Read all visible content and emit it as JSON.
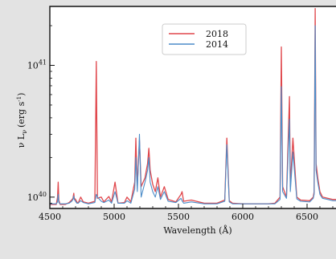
{
  "chart_data": {
    "type": "line",
    "title": "",
    "xlabel": "Wavelength (Å)",
    "ylabel": "ν L",
    "ylabel_sub": "ν",
    "ylabel_units": "(erg s",
    "ylabel_units_sup": "-1",
    "ylabel_units_close": ")",
    "yscale": "log",
    "xlim": [
      4500,
      6750
    ],
    "ylim": [
      8.2e+39,
      2.8e+41
    ],
    "x_ticks": [
      4500,
      5000,
      5500,
      6000,
      6500
    ],
    "x_tick_labels": [
      "4500",
      "5000",
      "5500",
      "6000",
      "6500"
    ],
    "y_ticks": [
      1e+40,
      1e+41
    ],
    "y_tick_labels": [
      {
        "base": "10",
        "exp": "40"
      },
      {
        "base": "10",
        "exp": "41"
      }
    ],
    "legend": {
      "placement": "top-center"
    },
    "colors": {
      "s2018": "#e0474c",
      "s2014": "#4c8cc8",
      "axes": "#111111",
      "plot_bg": "#ffffff",
      "page_bg": "#e3e3e3"
    },
    "series": [
      {
        "name": "2018",
        "color": "#e0474c",
        "x": [
          4500,
          4550,
          4560,
          4565,
          4570,
          4580,
          4620,
          4650,
          4670,
          4680,
          4686,
          4690,
          4700,
          4710,
          4720,
          4740,
          4760,
          4800,
          4850,
          4861,
          4870,
          4900,
          4920,
          4959,
          4980,
          5007,
          5030,
          5080,
          5100,
          5130,
          5160,
          5169,
          5180,
          5197,
          5210,
          5240,
          5260,
          5270,
          5280,
          5300,
          5320,
          5340,
          5360,
          5390,
          5420,
          5480,
          5520,
          5528,
          5540,
          5600,
          5700,
          5800,
          5860,
          5876,
          5895,
          5920,
          6000,
          6100,
          6200,
          6250,
          6290,
          6300,
          6310,
          6340,
          6363,
          6370,
          6390,
          6420,
          6450,
          6520,
          6548,
          6555,
          6563,
          6570,
          6583,
          6600,
          6620,
          6660,
          6700,
          6750
        ],
        "y": [
          8.8e+39,
          8.8e+39,
          1e+40,
          1.3e+40,
          9.5e+39,
          8.8e+39,
          8.8e+39,
          9.1e+39,
          9.5e+39,
          9.8e+39,
          1.07e+40,
          9.8e+39,
          9.6e+39,
          9.2e+39,
          9e+39,
          1e+40,
          9.2e+39,
          9e+39,
          9.3e+39,
          1.07e+41,
          9.8e+39,
          1e+40,
          9.2e+39,
          1.01e+40,
          9.2e+39,
          1.3e+40,
          9e+39,
          9.1e+39,
          1e+40,
          9.2e+39,
          1.3e+40,
          2.8e+40,
          1.2e+40,
          2.7e+40,
          1.2e+40,
          1.4e+40,
          1.8e+40,
          2.35e+40,
          1.6e+40,
          1.25e+40,
          1.1e+40,
          1.4e+40,
          1e+40,
          1.2e+40,
          9.6e+39,
          9.2e+39,
          1.05e+40,
          1.1e+40,
          9.3e+39,
          9.5e+39,
          9e+39,
          9e+39,
          9.5e+39,
          2.8e+40,
          9.4e+39,
          9e+39,
          8.9e+39,
          8.9e+39,
          8.9e+39,
          9e+39,
          1e+40,
          1.38e+41,
          1.2e+40,
          1e+40,
          5.8e+40,
          1.2e+40,
          2.8e+40,
          1e+40,
          9.5e+39,
          9.4e+39,
          1e+40,
          1.1e+40,
          2.7e+41,
          1.8e+40,
          1.4e+40,
          1.1e+40,
          1e+40,
          9.8e+39,
          9.6e+39,
          9.6e+39
        ]
      },
      {
        "name": "2014",
        "color": "#4c8cc8",
        "x": [
          4500,
          4550,
          4560,
          4565,
          4570,
          4580,
          4620,
          4650,
          4670,
          4680,
          4686,
          4690,
          4700,
          4710,
          4720,
          4740,
          4760,
          4800,
          4850,
          4861,
          4870,
          4900,
          4920,
          4959,
          4980,
          5007,
          5030,
          5080,
          5100,
          5130,
          5160,
          5169,
          5180,
          5197,
          5210,
          5240,
          5260,
          5270,
          5280,
          5300,
          5320,
          5340,
          5360,
          5390,
          5420,
          5480,
          5520,
          5528,
          5540,
          5600,
          5700,
          5800,
          5860,
          5876,
          5895,
          5920,
          6000,
          6100,
          6200,
          6250,
          6290,
          6300,
          6310,
          6340,
          6363,
          6370,
          6390,
          6420,
          6450,
          6520,
          6548,
          6555,
          6563,
          6570,
          6583,
          6600,
          6620,
          6660,
          6700,
          6750
        ],
        "y": [
          8.9e+39,
          8.9e+39,
          9.2e+39,
          1.05e+40,
          9.1e+39,
          8.9e+39,
          8.9e+39,
          9e+39,
          9.3e+39,
          9.6e+39,
          1.02e+40,
          9.6e+39,
          9.3e+39,
          9e+39,
          9e+39,
          9.4e+39,
          9.1e+39,
          8.9e+39,
          9.1e+39,
          1.05e+40,
          1e+40,
          9.3e+39,
          9.1e+39,
          9.5e+39,
          9e+39,
          1.1e+40,
          9e+39,
          9e+39,
          9.4e+39,
          9e+39,
          1.15e+40,
          2e+40,
          1.1e+40,
          3e+40,
          1e+40,
          1.3e+40,
          1.6e+40,
          2e+40,
          1.3e+40,
          1.1e+40,
          1e+40,
          1.2e+40,
          9.6e+39,
          1.1e+40,
          9.3e+39,
          9.1e+39,
          9.8e+39,
          9.4e+39,
          9e+39,
          9.2e+39,
          8.9e+39,
          8.9e+39,
          9.3e+39,
          2.5e+40,
          9.2e+39,
          8.9e+39,
          8.9e+39,
          8.9e+39,
          8.9e+39,
          8.9e+39,
          9.6e+39,
          6.9e+40,
          1.1e+40,
          9.8e+39,
          3.9e+40,
          1.1e+40,
          2.2e+40,
          9.7e+39,
          9.3e+39,
          9.2e+39,
          9.8e+39,
          1.05e+40,
          2e+41,
          1.6e+40,
          1.3e+40,
          1.05e+40,
          9.8e+39,
          9.6e+39,
          9.4e+39,
          9.4e+39
        ]
      }
    ]
  }
}
